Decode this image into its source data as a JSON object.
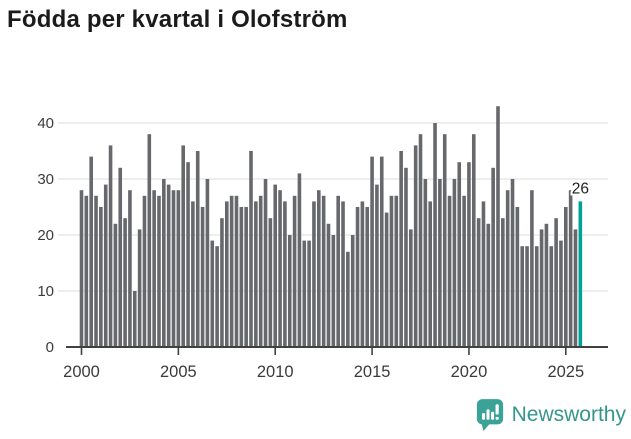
{
  "header": {
    "title": "Födda per kvartal i Olofström"
  },
  "chart_data": {
    "type": "bar",
    "title": "Födda per kvartal i Olofström",
    "frequency": "quarterly",
    "x_start": "2000-Q1",
    "x_end": "2025-Q4",
    "values": [
      28,
      27,
      34,
      27,
      25,
      29,
      36,
      22,
      32,
      23,
      28,
      10,
      21,
      27,
      38,
      28,
      27,
      30,
      29,
      28,
      28,
      36,
      33,
      26,
      35,
      25,
      30,
      19,
      18,
      23,
      26,
      27,
      27,
      25,
      25,
      35,
      26,
      27,
      30,
      23,
      29,
      28,
      26,
      20,
      27,
      31,
      19,
      19,
      26,
      28,
      27,
      22,
      20,
      27,
      26,
      17,
      20,
      25,
      26,
      25,
      34,
      29,
      34,
      24,
      27,
      27,
      35,
      32,
      21,
      36,
      38,
      30,
      26,
      40,
      30,
      38,
      27,
      30,
      33,
      27,
      33,
      38,
      23,
      26,
      22,
      32,
      43,
      23,
      28,
      30,
      25,
      18,
      18,
      28,
      18,
      21,
      22,
      18,
      23,
      19,
      25,
      28,
      21,
      26
    ],
    "yticks": [
      0,
      10,
      20,
      30,
      40
    ],
    "ylim": [
      0,
      45
    ],
    "xticks": [
      {
        "label": "2000",
        "bar_index": 0
      },
      {
        "label": "2005",
        "bar_index": 20
      },
      {
        "label": "2010",
        "bar_index": 40
      },
      {
        "label": "2015",
        "bar_index": 60
      },
      {
        "label": "2020",
        "bar_index": 80
      },
      {
        "label": "2025",
        "bar_index": 100
      }
    ],
    "grid": "horizontal",
    "legend": "none",
    "bar_color": "#67686c",
    "grid_color": "#e4e4e4",
    "axis_color": "#414141",
    "tick_label_color": "#3b3b3b",
    "highlight": {
      "bar_index": 103,
      "value": 26,
      "label": "26",
      "color": "#00a296",
      "label_color": "#1f1f1f"
    }
  },
  "footer": {
    "brand": "Newsworthy",
    "brand_color": "#35968b",
    "icon": "newsworthy-speech-bubble-chart-icon",
    "icon_bg": "#3ba297"
  }
}
